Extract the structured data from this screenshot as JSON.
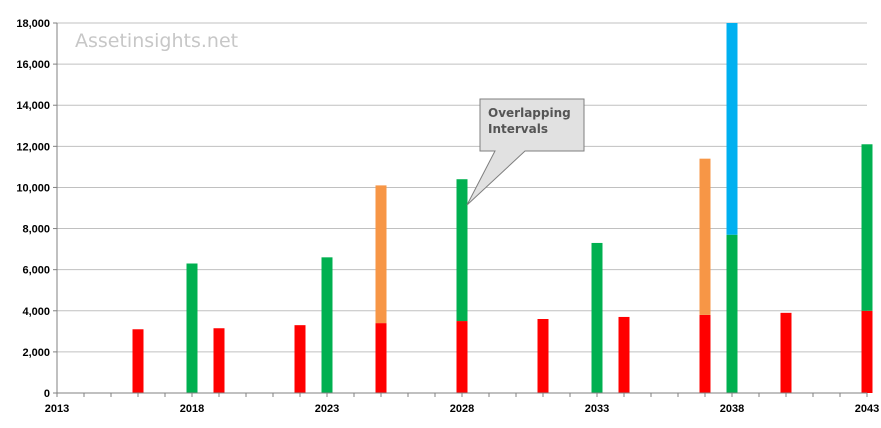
{
  "watermark": "Assetinsights.net",
  "callout": {
    "line1": "Overlapping",
    "line2": "Intervals"
  },
  "colors": {
    "red": "#ff0000",
    "green": "#00b050",
    "orange": "#f79646",
    "blue": "#00b0f0",
    "gridline": "#c0c0c0",
    "axis": "#808080"
  },
  "chart_data": {
    "type": "bar",
    "stacked": true,
    "title": "",
    "xlabel": "",
    "ylabel": "",
    "xlim": [
      2013,
      2043
    ],
    "ylim": [
      0,
      18000
    ],
    "grid": true,
    "x_ticks": [
      2013,
      2018,
      2023,
      2028,
      2033,
      2038,
      2043
    ],
    "x_tick_labels": [
      "2013",
      "2018",
      "2023",
      "2028",
      "2033",
      "2038",
      "2043"
    ],
    "y_ticks": [
      0,
      2000,
      4000,
      6000,
      8000,
      10000,
      12000,
      14000,
      16000,
      18000
    ],
    "y_tick_labels": [
      "0",
      "2,000",
      "4,000",
      "6,000",
      "8,000",
      "10,000",
      "12,000",
      "14,000",
      "16,000",
      "18,000"
    ],
    "bars": [
      {
        "x": 2016,
        "segments": [
          {
            "color": "red",
            "value": 3100
          }
        ]
      },
      {
        "x": 2018,
        "segments": [
          {
            "color": "green",
            "value": 6300
          }
        ]
      },
      {
        "x": 2019,
        "segments": [
          {
            "color": "red",
            "value": 3150
          }
        ]
      },
      {
        "x": 2022,
        "segments": [
          {
            "color": "red",
            "value": 3300
          }
        ]
      },
      {
        "x": 2023,
        "segments": [
          {
            "color": "green",
            "value": 6600
          }
        ]
      },
      {
        "x": 2025,
        "segments": [
          {
            "color": "red",
            "value": 3400
          },
          {
            "color": "orange",
            "value": 6700
          }
        ]
      },
      {
        "x": 2028,
        "segments": [
          {
            "color": "red",
            "value": 3500
          },
          {
            "color": "green",
            "value": 6900
          }
        ]
      },
      {
        "x": 2031,
        "segments": [
          {
            "color": "red",
            "value": 3600
          }
        ]
      },
      {
        "x": 2033,
        "segments": [
          {
            "color": "green",
            "value": 7300
          }
        ]
      },
      {
        "x": 2034,
        "segments": [
          {
            "color": "red",
            "value": 3700
          }
        ]
      },
      {
        "x": 2037,
        "segments": [
          {
            "color": "red",
            "value": 3800
          },
          {
            "color": "orange",
            "value": 7600
          }
        ]
      },
      {
        "x": 2038,
        "segments": [
          {
            "color": "green",
            "value": 7700
          },
          {
            "color": "blue",
            "value": 10300
          }
        ]
      },
      {
        "x": 2040,
        "segments": [
          {
            "color": "red",
            "value": 3900
          }
        ]
      },
      {
        "x": 2043,
        "segments": [
          {
            "color": "red",
            "value": 4000
          },
          {
            "color": "green",
            "value": 8100
          }
        ]
      }
    ]
  }
}
